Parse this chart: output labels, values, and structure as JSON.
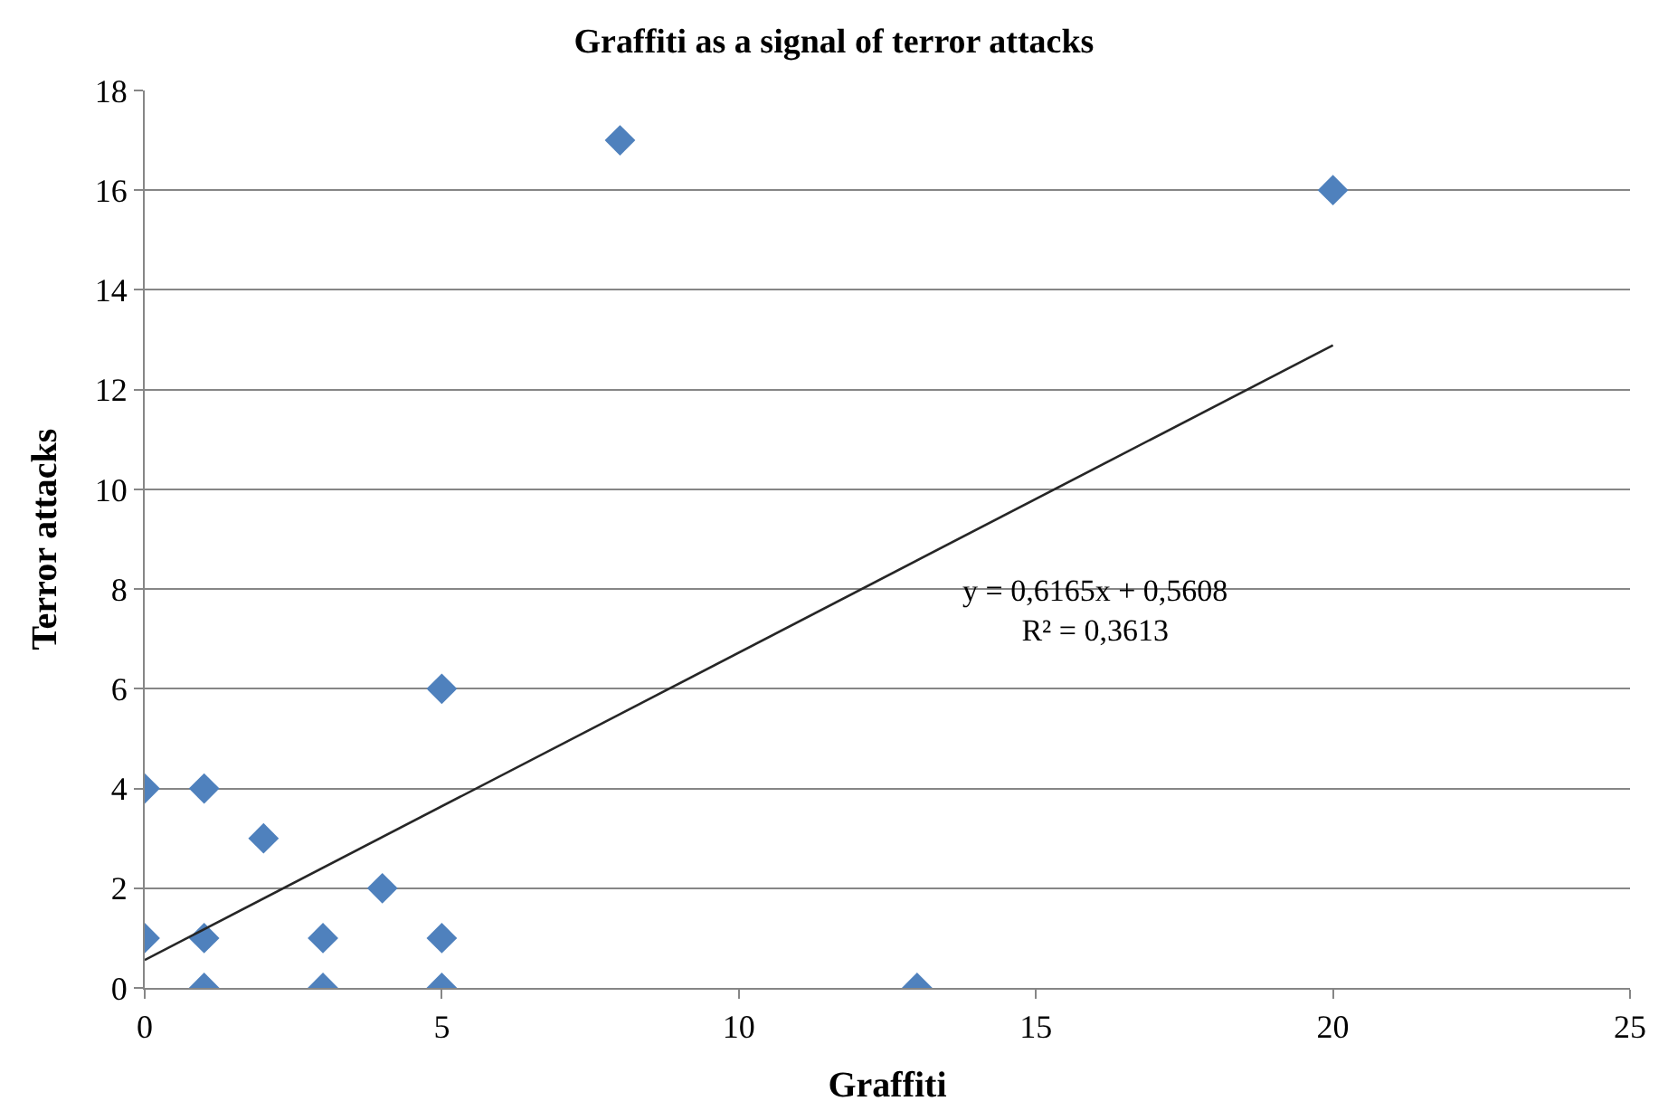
{
  "chart_data": {
    "type": "scatter",
    "title": "Graffiti as a signal of terror attacks",
    "xlabel": "Graffiti",
    "ylabel": "Terror attacks",
    "xlim": [
      0,
      25
    ],
    "xticks": [
      0,
      5,
      10,
      15,
      20,
      25
    ],
    "ylim": [
      0,
      18
    ],
    "yticks": [
      0,
      2,
      4,
      6,
      8,
      10,
      12,
      14,
      16,
      18
    ],
    "grid": "y",
    "legend": false,
    "marker": "diamond",
    "series": [
      {
        "color": "#4f81bd",
        "x": [
          0,
          0,
          1,
          1,
          1,
          2,
          3,
          3,
          4,
          5,
          5,
          5,
          8,
          13,
          20
        ],
        "values": [
          4,
          1,
          4,
          1,
          0,
          3,
          1,
          0,
          2,
          6,
          1,
          0,
          17,
          0,
          16
        ]
      },
      {
        "type": "line",
        "color": "#262626",
        "marker": "none",
        "x": [
          0,
          20
        ],
        "values": [
          0.56,
          12.89
        ]
      }
    ],
    "annotations": [
      "y = 0,6165x + 0,5608\nR² = 0,3613"
    ]
  }
}
